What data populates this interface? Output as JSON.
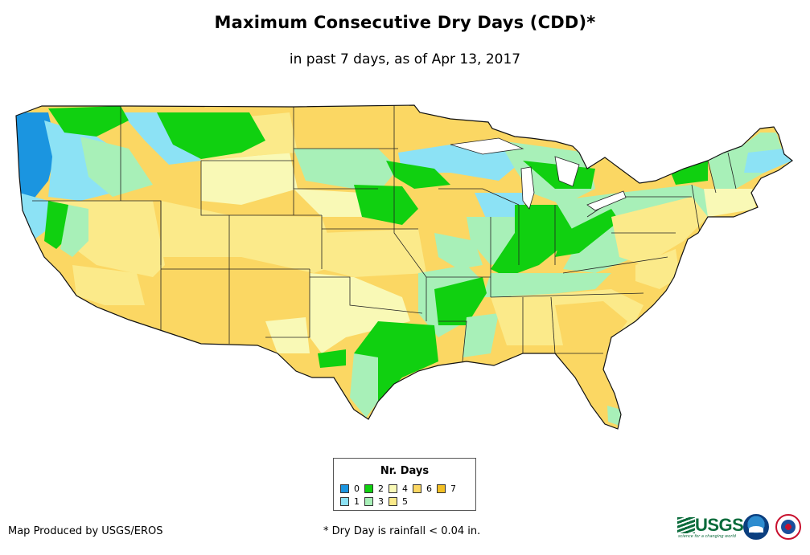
{
  "title": "Maximum Consecutive Dry Days (CDD)*",
  "subtitle": "in past 7 days, as of Apr 13, 2017",
  "legend": {
    "title": "Nr. Days",
    "items": [
      {
        "label": "0",
        "color": "#1b95e0"
      },
      {
        "label": "1",
        "color": "#8ce2f5"
      },
      {
        "label": "2",
        "color": "#10d010"
      },
      {
        "label": "3",
        "color": "#a8f0b8"
      },
      {
        "label": "4",
        "color": "#f9f9b6"
      },
      {
        "label": "5",
        "color": "#fbea8a"
      },
      {
        "label": "6",
        "color": "#fbd763"
      },
      {
        "label": "7",
        "color": "#f2bf24"
      }
    ]
  },
  "credit": "Map Produced by USGS/EROS",
  "footnote": "* Dry Day is rainfall < 0.04 in.",
  "logos": {
    "usgs": {
      "word": "USGS",
      "tagline": "science for a changing world"
    },
    "noaa": {
      "name": "noaa-logo"
    },
    "nws": {
      "name": "national-weather-service-logo"
    }
  }
}
